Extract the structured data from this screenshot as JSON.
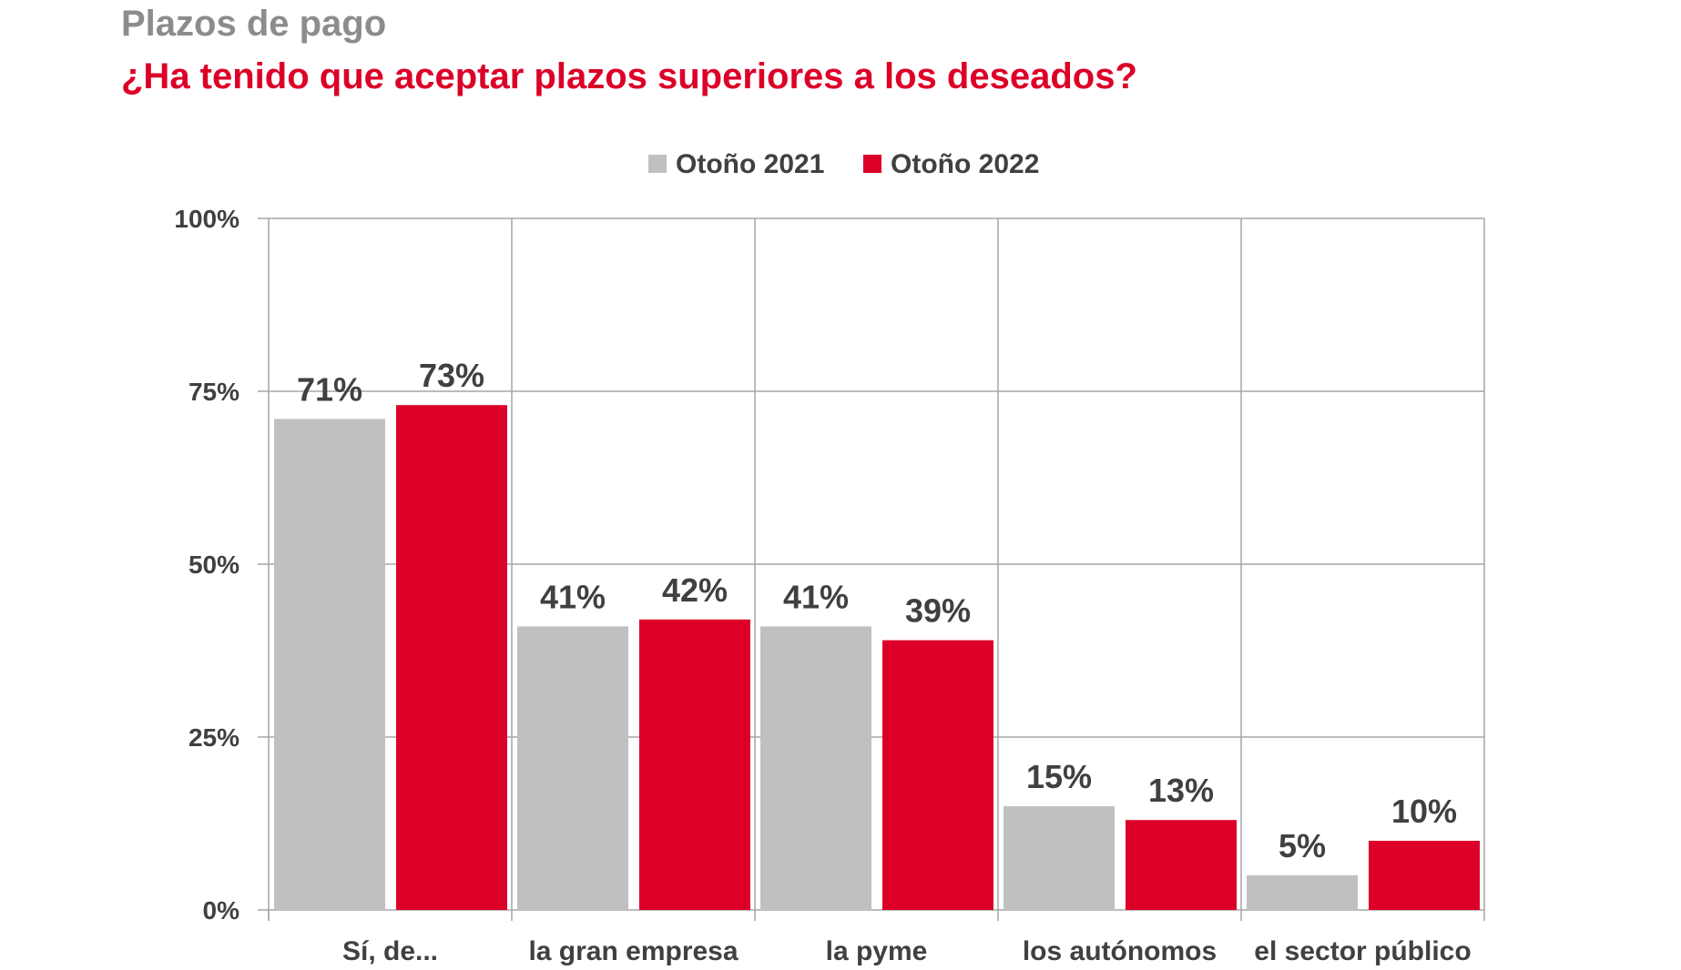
{
  "title": "Plazos de pago",
  "subtitle": "¿Ha tenido que aceptar plazos superiores a los deseados?",
  "colors": {
    "title": "#8c8c8c",
    "subtitle": "#dc0028",
    "text": "#404040",
    "grid": "#a6a6a6"
  },
  "chart_data": {
    "type": "bar",
    "categories": [
      "Sí, de...",
      "la gran empresa",
      "la pyme",
      "los autónomos",
      "el sector público"
    ],
    "series": [
      {
        "name": "Otoño 2021",
        "color": "#c0c0c0",
        "values": [
          71,
          41,
          41,
          15,
          5
        ],
        "labels": [
          "71%",
          "41%",
          "41%",
          "15%",
          "5%"
        ]
      },
      {
        "name": "Otoño 2022",
        "color": "#dc0028",
        "values": [
          73,
          42,
          39,
          13,
          10
        ],
        "labels": [
          "73%",
          "42%",
          "39%",
          "13%",
          "10%"
        ]
      }
    ],
    "ylim": [
      0,
      100
    ],
    "yticks": [
      0,
      25,
      50,
      75,
      100
    ],
    "ytick_labels": [
      "0%",
      "25%",
      "50%",
      "75%",
      "100%"
    ],
    "grid": true,
    "legend": "top-center",
    "xlabel": "",
    "ylabel": ""
  }
}
